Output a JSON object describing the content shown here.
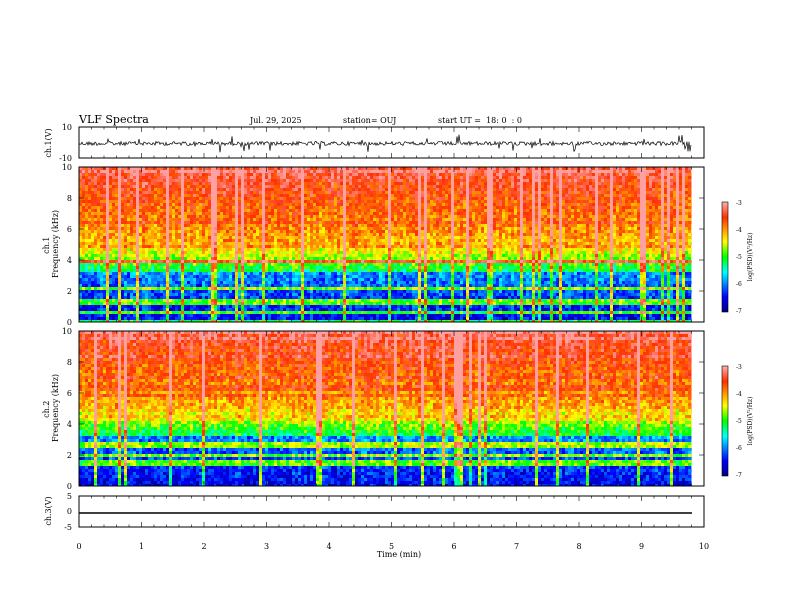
{
  "header": {
    "title": "VLF Spectra",
    "date": "Jul. 29, 2025",
    "station": "station= OUJ",
    "start_ut": "start UT =  18: 0  : 0"
  },
  "chart_data": [
    {
      "type": "line",
      "ylabel": "ch.1(V)",
      "ylim": [
        -10,
        10
      ],
      "yticks": [
        "10",
        "-10"
      ],
      "xlim": [
        0,
        10
      ],
      "description_values": {
        "baseline": 0,
        "noise_amplitude": 2.5
      }
    },
    {
      "type": "heatmap",
      "ylabel": "ch.1 Frequency (kHz)",
      "ylim": [
        0,
        10
      ],
      "yticks": [
        "0",
        "2",
        "4",
        "6",
        "8",
        "10"
      ],
      "xlim": [
        0,
        10
      ],
      "colorbar": {
        "label": "log(PSD)(V²/Hz)",
        "range": [
          -7,
          -3
        ],
        "ticks": [
          "-3",
          "-4",
          "-5",
          "-6",
          "-7"
        ]
      }
    },
    {
      "type": "heatmap",
      "ylabel": "ch.2 Frequency (kHz)",
      "ylim": [
        0,
        10
      ],
      "yticks": [
        "0",
        "2",
        "4",
        "6",
        "8",
        "10"
      ],
      "xlim": [
        0,
        10
      ],
      "colorbar": {
        "label": "log(PSD)(V²/Hz)",
        "range": [
          -7,
          -3
        ],
        "ticks": [
          "-3",
          "-4",
          "-5",
          "-6",
          "-7"
        ]
      }
    },
    {
      "type": "line",
      "ylabel": "ch.3(V)",
      "ylim": [
        -5,
        5
      ],
      "yticks": [
        "5",
        "0",
        "-5"
      ],
      "xlim": [
        0,
        10
      ],
      "description_values": {
        "constant": -1.8
      }
    }
  ],
  "xaxis": {
    "label": "Time (min)",
    "ticks": [
      "0",
      "1",
      "2",
      "3",
      "4",
      "5",
      "6",
      "7",
      "8",
      "9",
      "10"
    ],
    "data_end": 9.8
  },
  "colors": {
    "jet": [
      "#00008f",
      "#0000ff",
      "#00ffff",
      "#00ff00",
      "#ffff00",
      "#ff8000",
      "#ff0000"
    ]
  }
}
